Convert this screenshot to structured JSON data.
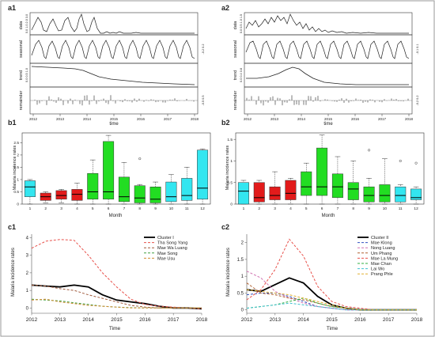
{
  "panels": {
    "a1": {
      "label": "a1",
      "component_labels": [
        "data",
        "seasonal",
        "trend",
        "remainder"
      ],
      "x_ticks": [
        "2012",
        "2013",
        "2014",
        "2015",
        "2016",
        "2017",
        "2018"
      ],
      "xlabel": "time",
      "data_axis": "0.0 1.0 2.0 3.0",
      "seasonal_axis": "-0.2 0.2",
      "trend_axis": "0.0 0.5 1.0",
      "remainder_axis": "-0.5 0.5"
    },
    "a2": {
      "label": "a2",
      "component_labels": [
        "data",
        "seasonal",
        "trend",
        "remainder"
      ],
      "x_ticks": [
        "2012",
        "2013",
        "2014",
        "2015",
        "2016",
        "2017",
        "2018"
      ],
      "xlabel": "time",
      "data_axis": "0.0 0.5 1.0 1.5",
      "seasonal_axis": "-0.1 0.1",
      "trend_axis": "0.0 0.4 0.8",
      "remainder_axis": "-0.2 0.2"
    },
    "b1": {
      "label": "b1",
      "ylabel": "Malaria incidence rates",
      "xlabel": "Month"
    },
    "b2": {
      "label": "b2",
      "ylabel": "Malaria incidence rates",
      "xlabel": "Month"
    },
    "c1": {
      "label": "c1",
      "ylabel": "Malaria incidence rates",
      "xlabel": "Time"
    },
    "c2": {
      "label": "c2",
      "ylabel": "Malaria incidence rates",
      "xlabel": "Time"
    }
  },
  "chart_data": [
    {
      "id": "b1",
      "type": "box",
      "categories": [
        "1",
        "2",
        "3",
        "4",
        "5",
        "6",
        "7",
        "8",
        "9",
        "10",
        "11",
        "12"
      ],
      "yticks": [
        "0",
        "0.5",
        "1",
        "1.5",
        "2",
        "2.5"
      ],
      "ylim": [
        0,
        2.9
      ],
      "colors": {
        "cyan": "#33e6f0",
        "red": "#e21b1b",
        "green": "#22dd22"
      },
      "boxes": [
        {
          "color": "cyan",
          "min": 0.0,
          "q1": 0.3,
          "med": 0.7,
          "q3": 0.95,
          "max": 1.0
        },
        {
          "color": "red",
          "min": 0.05,
          "q1": 0.15,
          "med": 0.3,
          "q3": 0.45,
          "max": 0.5
        },
        {
          "color": "red",
          "min": 0.05,
          "q1": 0.2,
          "med": 0.35,
          "q3": 0.55,
          "max": 0.6
        },
        {
          "color": "red",
          "min": 0.0,
          "q1": 0.15,
          "med": 0.4,
          "q3": 0.6,
          "max": 0.85
        },
        {
          "color": "green",
          "min": 0.0,
          "q1": 0.2,
          "med": 0.5,
          "q3": 1.25,
          "max": 1.8
        },
        {
          "color": "green",
          "min": 0.0,
          "q1": 0.2,
          "med": 0.5,
          "q3": 2.55,
          "max": 2.8
        },
        {
          "color": "green",
          "min": 0.0,
          "q1": 0.1,
          "med": 0.3,
          "q3": 1.1,
          "max": 1.7
        },
        {
          "color": "green",
          "min": 0.0,
          "q1": 0.05,
          "med": 0.25,
          "q3": 0.75,
          "max": 0.8,
          "outliers": [
            1.85
          ]
        },
        {
          "color": "green",
          "min": 0.0,
          "q1": 0.05,
          "med": 0.2,
          "q3": 0.7,
          "max": 0.9
        },
        {
          "color": "cyan",
          "min": 0.0,
          "q1": 0.1,
          "med": 0.3,
          "q3": 0.9,
          "max": 1.2
        },
        {
          "color": "cyan",
          "min": 0.0,
          "q1": 0.15,
          "med": 0.35,
          "q3": 1.05,
          "max": 1.5
        },
        {
          "color": "cyan",
          "min": 0.0,
          "q1": 0.2,
          "med": 0.65,
          "q3": 2.2,
          "max": 2.25
        }
      ]
    },
    {
      "id": "b2",
      "type": "box",
      "categories": [
        "1",
        "2",
        "3",
        "4",
        "5",
        "6",
        "7",
        "8",
        "9",
        "10",
        "11",
        "12"
      ],
      "yticks": [
        "0",
        "0.5",
        "1",
        "1.5"
      ],
      "ylim": [
        0,
        1.65
      ],
      "colors": {
        "cyan": "#33e6f0",
        "red": "#e21b1b",
        "green": "#22dd22"
      },
      "boxes": [
        {
          "color": "cyan",
          "min": 0.0,
          "q1": 0.0,
          "med": 0.3,
          "q3": 0.5,
          "max": 0.55
        },
        {
          "color": "red",
          "min": 0.0,
          "q1": 0.05,
          "med": 0.15,
          "q3": 0.5,
          "max": 0.55
        },
        {
          "color": "red",
          "min": 0.0,
          "q1": 0.1,
          "med": 0.2,
          "q3": 0.4,
          "max": 0.75
        },
        {
          "color": "red",
          "min": 0.0,
          "q1": 0.1,
          "med": 0.25,
          "q3": 0.55,
          "max": 0.6
        },
        {
          "color": "green",
          "min": 0.0,
          "q1": 0.2,
          "med": 0.4,
          "q3": 0.75,
          "max": 0.95
        },
        {
          "color": "green",
          "min": 0.0,
          "q1": 0.2,
          "med": 0.4,
          "q3": 1.3,
          "max": 1.6
        },
        {
          "color": "green",
          "min": 0.0,
          "q1": 0.15,
          "med": 0.4,
          "q3": 0.7,
          "max": 1.1
        },
        {
          "color": "green",
          "min": 0.0,
          "q1": 0.1,
          "med": 0.35,
          "q3": 0.5,
          "max": 1.0
        },
        {
          "color": "green",
          "min": 0.0,
          "q1": 0.05,
          "med": 0.2,
          "q3": 0.4,
          "max": 0.6,
          "outliers": [
            1.25
          ]
        },
        {
          "color": "green",
          "min": 0.0,
          "q1": 0.05,
          "med": 0.2,
          "q3": 0.45,
          "max": 1.05
        },
        {
          "color": "cyan",
          "min": 0.0,
          "q1": 0.05,
          "med": 0.2,
          "q3": 0.4,
          "max": 0.45,
          "outliers": [
            1.0
          ]
        },
        {
          "color": "cyan",
          "min": 0.0,
          "q1": 0.1,
          "med": 0.15,
          "q3": 0.35,
          "max": 0.4,
          "outliers": [
            0.95
          ]
        }
      ]
    },
    {
      "id": "c1",
      "type": "line",
      "x": [
        2012,
        2012.5,
        2013,
        2013.5,
        2014,
        2014.5,
        2015,
        2015.5,
        2016,
        2016.5,
        2017,
        2017.5,
        2018
      ],
      "xticks": [
        "2012",
        "2013",
        "2014",
        "2015",
        "2016",
        "2017",
        "2018"
      ],
      "yticks": [
        "0",
        "1",
        "2",
        "3",
        "4"
      ],
      "ylim": [
        -0.3,
        4.2
      ],
      "series": [
        {
          "name": "Cluster I",
          "color": "#000000",
          "dash": "",
          "width": 1.8,
          "values": [
            1.3,
            1.25,
            1.2,
            1.3,
            1.2,
            0.75,
            0.45,
            0.35,
            0.25,
            0.1,
            0.0,
            0.0,
            -0.05
          ]
        },
        {
          "name": "Tha Song Yang",
          "color": "#e8504a",
          "dash": "3,2",
          "width": 1,
          "values": [
            3.4,
            3.8,
            3.9,
            3.85,
            3.0,
            2.0,
            1.2,
            0.5,
            0.2,
            0.1,
            0.05,
            0.0,
            -0.05
          ]
        },
        {
          "name": "Mae Wa Luang",
          "color": "#a05a3c",
          "dash": "3,2",
          "width": 1,
          "values": [
            1.3,
            1.25,
            1.1,
            1.0,
            0.75,
            0.55,
            0.35,
            0.15,
            0.05,
            0.0,
            0.0,
            0.0,
            0.0
          ]
        },
        {
          "name": "Mae Song",
          "color": "#40a040",
          "dash": "3,2",
          "width": 1,
          "values": [
            0.5,
            0.45,
            0.4,
            0.3,
            0.2,
            0.1,
            0.05,
            0.02,
            0.0,
            0.0,
            0.0,
            0.0,
            0.0
          ]
        },
        {
          "name": "Mae Usu",
          "color": "#d08a30",
          "dash": "3,2",
          "width": 1,
          "values": [
            0.45,
            0.5,
            0.35,
            0.25,
            0.15,
            0.1,
            0.05,
            0.0,
            0.0,
            0.0,
            0.0,
            0.0,
            0.0
          ]
        }
      ]
    },
    {
      "id": "c2",
      "type": "line",
      "x": [
        2012,
        2012.5,
        2013,
        2013.5,
        2014,
        2014.5,
        2015,
        2015.5,
        2016,
        2016.5,
        2017,
        2017.5,
        2018
      ],
      "xticks": [
        "2012",
        "2013",
        "2014",
        "2015",
        "2016",
        "2017",
        "2018"
      ],
      "yticks": [
        "0",
        "0.5",
        "1",
        "1.5",
        "2"
      ],
      "ylim": [
        -0.1,
        2.25
      ],
      "series": [
        {
          "name": "Cluster II",
          "color": "#000000",
          "dash": "",
          "width": 1.8,
          "values": [
            0.6,
            0.55,
            0.75,
            0.95,
            0.8,
            0.4,
            0.15,
            0.05,
            0.0,
            0.0,
            0.0,
            0.0,
            0.0
          ]
        },
        {
          "name": "Mae Klong",
          "color": "#3050c0",
          "dash": "3,2",
          "width": 1,
          "values": [
            0.45,
            0.5,
            0.5,
            0.4,
            0.25,
            0.1,
            0.05,
            0.0,
            0.0,
            0.0,
            0.0,
            0.0,
            0.0
          ]
        },
        {
          "name": "Nong Luang",
          "color": "#d070b0",
          "dash": "3,2",
          "width": 1,
          "values": [
            1.15,
            0.95,
            0.55,
            0.35,
            0.2,
            0.1,
            0.05,
            0.0,
            0.0,
            0.0,
            0.0,
            0.0,
            0.0
          ]
        },
        {
          "name": "Um Phang",
          "color": "#b06030",
          "dash": "3,2",
          "width": 1,
          "values": [
            0.8,
            0.5,
            0.45,
            0.35,
            0.3,
            0.2,
            0.1,
            0.05,
            0.0,
            0.0,
            0.0,
            0.0,
            0.0
          ]
        },
        {
          "name": "Mae La Mung",
          "color": "#e8504a",
          "dash": "3,2",
          "width": 1,
          "values": [
            0.3,
            0.6,
            1.2,
            2.1,
            1.6,
            0.7,
            0.25,
            0.1,
            0.05,
            0.0,
            0.0,
            0.0,
            0.0
          ]
        },
        {
          "name": "Mae Chan",
          "color": "#30b040",
          "dash": "3,2",
          "width": 1,
          "values": [
            0.05,
            0.1,
            0.15,
            0.25,
            0.35,
            0.2,
            0.1,
            0.05,
            0.0,
            0.0,
            0.0,
            0.0,
            0.0
          ]
        },
        {
          "name": "Lai Wo",
          "color": "#40c0d0",
          "dash": "3,2",
          "width": 1,
          "values": [
            0.05,
            0.1,
            0.15,
            0.2,
            0.15,
            0.1,
            0.05,
            0.0,
            0.0,
            0.0,
            0.0,
            0.0,
            0.0
          ]
        },
        {
          "name": "Prang Phle",
          "color": "#e0b030",
          "dash": "3,2",
          "width": 1,
          "values": [
            0.6,
            0.55,
            0.5,
            0.45,
            0.35,
            0.25,
            0.15,
            0.05,
            0.0,
            0.0,
            0.0,
            0.0,
            0.0
          ]
        }
      ]
    }
  ]
}
